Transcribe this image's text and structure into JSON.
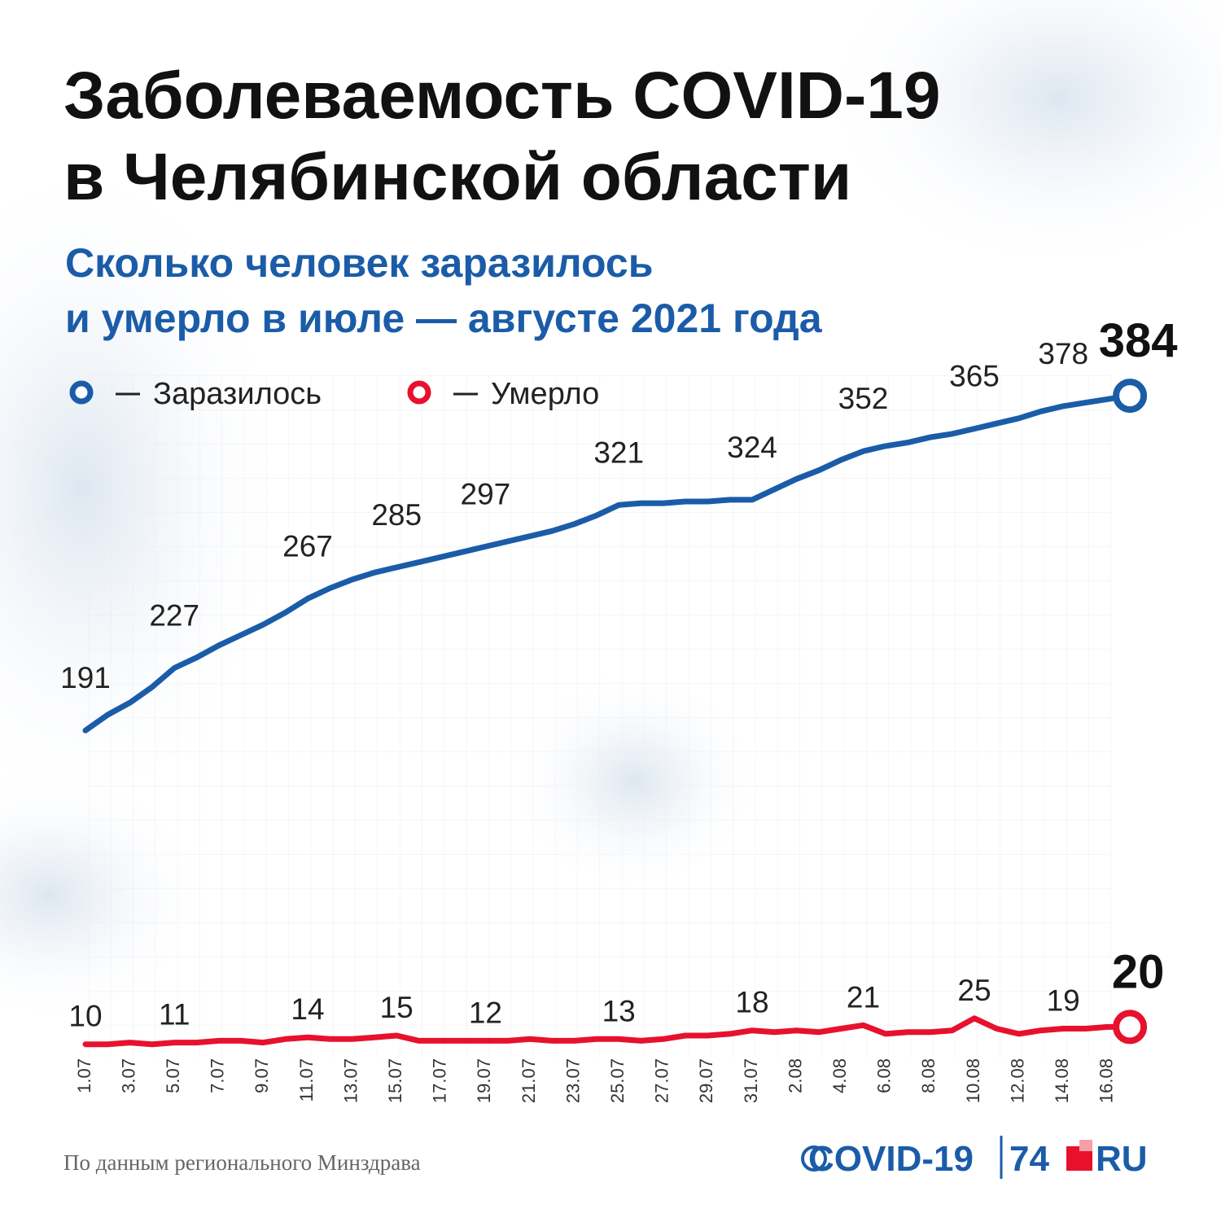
{
  "chart_data": {
    "type": "line",
    "title": [
      "Заболеваемость COVID-19",
      "в Челябинской области"
    ],
    "subtitle": [
      "Сколько человек заразилось",
      "и умерло в июле — августе 2021 года"
    ],
    "categories": [
      "1.07",
      null,
      "3.07",
      null,
      "5.07",
      null,
      "7.07",
      null,
      "9.07",
      null,
      "11.07",
      null,
      "13.07",
      null,
      "15.07",
      null,
      "17.07",
      null,
      "19.07",
      null,
      "21.07",
      null,
      "23.07",
      null,
      "25.07",
      null,
      "27.07",
      null,
      "29.07",
      null,
      "31.07",
      null,
      "2.08",
      null,
      "4.08",
      null,
      "6.08",
      null,
      "8.08",
      null,
      "10.08",
      null,
      "12.08",
      null,
      "14.08",
      null,
      "16.08",
      null
    ],
    "series": [
      {
        "name": "Заразилось",
        "color": "#1b5ca8",
        "values": [
          191,
          200,
          207,
          216,
          227,
          233,
          240,
          246,
          252,
          259,
          267,
          273,
          278,
          282,
          285,
          288,
          291,
          294,
          297,
          300,
          303,
          306,
          310,
          315,
          321,
          322,
          322,
          323,
          323,
          324,
          324,
          330,
          336,
          341,
          347,
          352,
          355,
          357,
          360,
          362,
          365,
          368,
          371,
          375,
          378,
          380,
          382,
          384
        ],
        "value_labels": [
          "191",
          null,
          null,
          null,
          "227",
          null,
          null,
          null,
          null,
          null,
          "267",
          null,
          null,
          null,
          "285",
          null,
          null,
          null,
          "297",
          null,
          null,
          null,
          null,
          null,
          "321",
          null,
          null,
          null,
          null,
          null,
          "324",
          null,
          null,
          null,
          null,
          "352",
          null,
          null,
          null,
          null,
          "365",
          null,
          null,
          null,
          "378",
          null,
          null,
          "384"
        ]
      },
      {
        "name": "Умерло",
        "color": "#e8112d",
        "values": [
          10,
          10,
          11,
          10,
          11,
          11,
          12,
          12,
          11,
          13,
          14,
          13,
          13,
          14,
          15,
          12,
          12,
          12,
          12,
          12,
          13,
          12,
          12,
          13,
          13,
          12,
          13,
          15,
          15,
          16,
          18,
          17,
          18,
          17,
          19,
          21,
          16,
          17,
          17,
          18,
          25,
          19,
          16,
          18,
          19,
          19,
          20,
          20
        ],
        "value_labels": [
          "10",
          null,
          null,
          null,
          "11",
          null,
          null,
          null,
          null,
          null,
          "14",
          null,
          null,
          null,
          "15",
          null,
          null,
          null,
          "12",
          null,
          null,
          null,
          null,
          null,
          "13",
          null,
          null,
          null,
          null,
          null,
          "18",
          null,
          null,
          null,
          null,
          "21",
          null,
          null,
          null,
          null,
          "25",
          null,
          null,
          null,
          "19",
          null,
          null,
          "20"
        ]
      }
    ],
    "ylim": [
      0,
      400
    ],
    "source": "По данным регионального Минздрава",
    "logo": {
      "text": "COVID-19",
      "number": "74",
      "suffix": "RU"
    }
  }
}
